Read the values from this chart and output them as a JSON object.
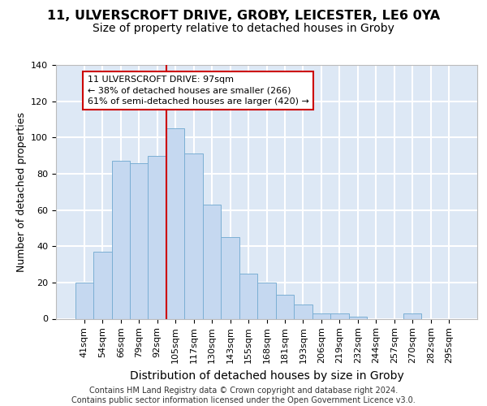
{
  "title1": "11, ULVERSCROFT DRIVE, GROBY, LEICESTER, LE6 0YA",
  "title2": "Size of property relative to detached houses in Groby",
  "xlabel": "Distribution of detached houses by size in Groby",
  "ylabel": "Number of detached properties",
  "categories": [
    "41sqm",
    "54sqm",
    "66sqm",
    "79sqm",
    "92sqm",
    "105sqm",
    "117sqm",
    "130sqm",
    "143sqm",
    "155sqm",
    "168sqm",
    "181sqm",
    "193sqm",
    "206sqm",
    "219sqm",
    "232sqm",
    "244sqm",
    "257sqm",
    "270sqm",
    "282sqm",
    "295sqm"
  ],
  "values": [
    20,
    37,
    87,
    86,
    90,
    105,
    91,
    63,
    45,
    25,
    20,
    13,
    8,
    3,
    3,
    1,
    0,
    0,
    3,
    0,
    0
  ],
  "bar_color": "#c5d8f0",
  "bar_edge_color": "#7bafd4",
  "vline_x": 4.5,
  "vline_color": "#cc0000",
  "annotation_text": "11 ULVERSCROFT DRIVE: 97sqm\n← 38% of detached houses are smaller (266)\n61% of semi-detached houses are larger (420) →",
  "annotation_box_facecolor": "#ffffff",
  "annotation_box_edgecolor": "#cc0000",
  "ylim": [
    0,
    140
  ],
  "yticks": [
    0,
    20,
    40,
    60,
    80,
    100,
    120,
    140
  ],
  "footer": "Contains HM Land Registry data © Crown copyright and database right 2024.\nContains public sector information licensed under the Open Government Licence v3.0.",
  "bg_color": "#dde8f5",
  "grid_color": "#ffffff",
  "title1_fontsize": 11.5,
  "title2_fontsize": 10,
  "xlabel_fontsize": 10,
  "ylabel_fontsize": 9,
  "tick_fontsize": 8,
  "annot_fontsize": 8,
  "footer_fontsize": 7
}
